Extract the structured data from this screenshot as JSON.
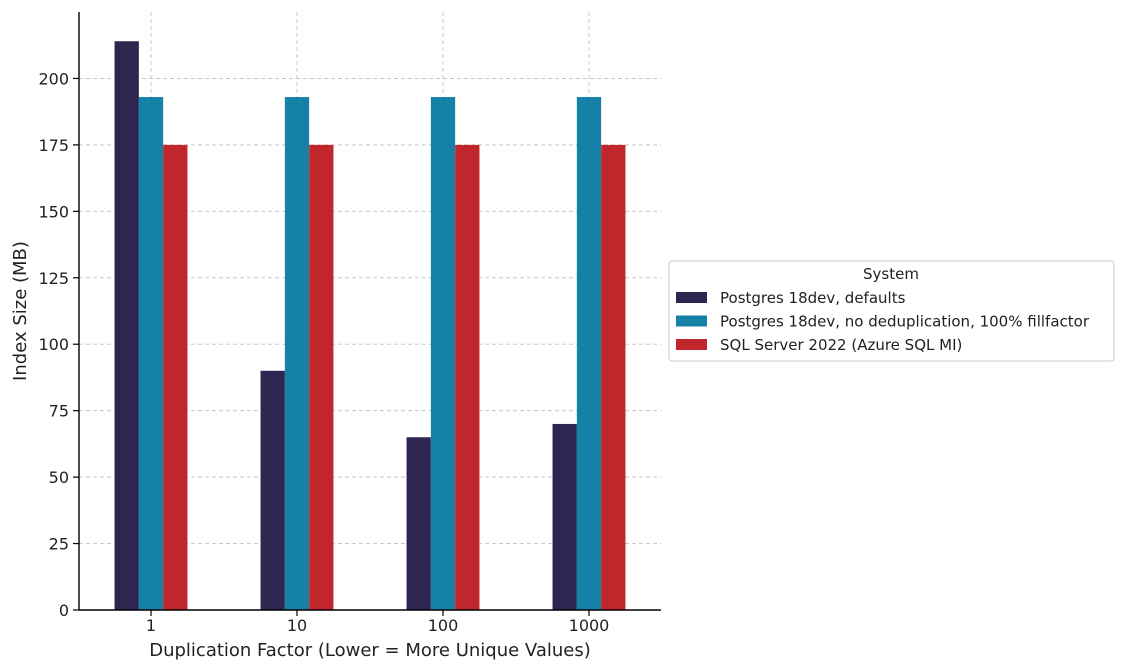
{
  "chart_data": {
    "type": "bar",
    "categories": [
      "1",
      "10",
      "100",
      "1000"
    ],
    "series": [
      {
        "name": "Postgres 18dev, defaults",
        "color": "#2e2550",
        "values": [
          214,
          90,
          65,
          70
        ]
      },
      {
        "name": "Postgres 18dev, no deduplication, 100% fillfactor",
        "color": "#1581a6",
        "values": [
          193,
          193,
          193,
          193
        ]
      },
      {
        "name": "SQL Server 2022 (Azure SQL MI)",
        "color": "#c0262b",
        "values": [
          175,
          175,
          175,
          175
        ]
      }
    ],
    "xlabel": "Duplication Factor (Lower = More Unique Values)",
    "ylabel": "Index Size (MB)",
    "ylim": [
      0,
      225
    ],
    "yticks": [
      0,
      25,
      50,
      75,
      100,
      125,
      150,
      175,
      200
    ],
    "grid": true,
    "legend": {
      "title": "System",
      "placement": "right"
    }
  }
}
